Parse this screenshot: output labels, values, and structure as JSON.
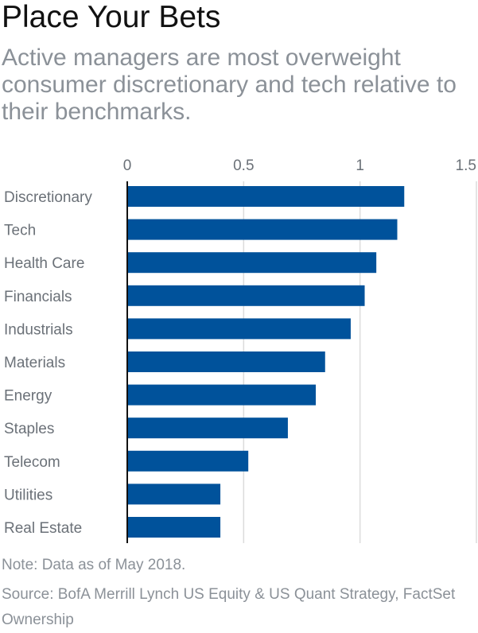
{
  "title": "Place Your Bets",
  "subtitle": "Active managers are most overweight consumer discretionary and tech relative to their benchmarks.",
  "note": "Note: Data as of May 2018.",
  "source": "Source: BofA Merrill Lynch US Equity & US Quant Strategy, FactSet Ownership",
  "colors": {
    "bar": "#00529b",
    "gridline": "#dcdcdc",
    "axis": "#111111",
    "label": "#6b7178"
  },
  "chart_data": {
    "type": "bar",
    "orientation": "horizontal",
    "categories": [
      "Discretionary",
      "Tech",
      "Health Care",
      "Financials",
      "Industrials",
      "Materials",
      "Energy",
      "Staples",
      "Telecom",
      "Utilities",
      "Real Estate"
    ],
    "values": [
      1.19,
      1.16,
      1.07,
      1.02,
      0.96,
      0.85,
      0.81,
      0.69,
      0.52,
      0.4,
      0.4
    ],
    "xlim": [
      0,
      1.5
    ],
    "xticks": [
      0,
      0.5,
      1,
      1.5
    ],
    "xtick_labels": [
      "0",
      "0.5",
      "1",
      "1.5"
    ],
    "axis_position": "top",
    "grid": true
  }
}
